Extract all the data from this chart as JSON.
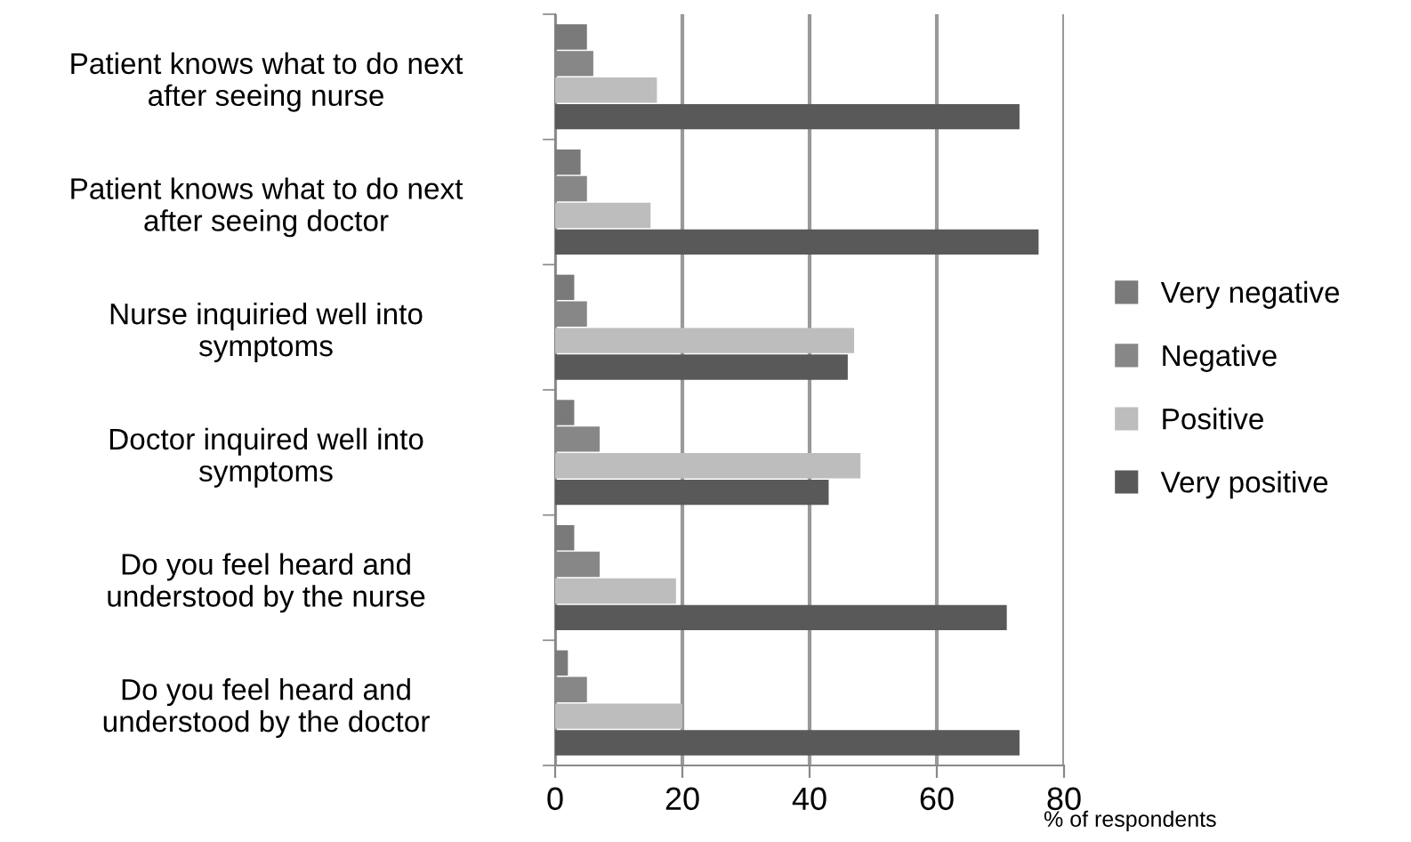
{
  "chart_data": {
    "type": "bar",
    "orientation": "horizontal",
    "xlabel": "% of respondents",
    "categories": [
      "Patient knows what to do next\nafter seeing nurse",
      "Patient knows what to do next\nafter seeing doctor",
      "Nurse inquiried well into\nsymptoms",
      "Doctor inquired well into\nsymptoms",
      "Do you feel heard and\nunderstood by the nurse",
      "Do you feel heard and\nunderstood by the doctor"
    ],
    "series": [
      {
        "name": "Very negative",
        "color": "#7a7a7a",
        "values": [
          5,
          4,
          3,
          3,
          3,
          2
        ]
      },
      {
        "name": "Negative",
        "color": "#878787",
        "values": [
          6,
          5,
          5,
          7,
          7,
          5
        ]
      },
      {
        "name": "Positive",
        "color": "#bdbdbd",
        "values": [
          16,
          15,
          47,
          48,
          19,
          20
        ]
      },
      {
        "name": "Very positive",
        "color": "#595959",
        "values": [
          73,
          76,
          46,
          43,
          71,
          73
        ]
      }
    ],
    "xlim": [
      0,
      80
    ],
    "xticks": [
      0,
      20,
      40,
      60,
      80
    ],
    "grid": "x",
    "legend": "right"
  }
}
